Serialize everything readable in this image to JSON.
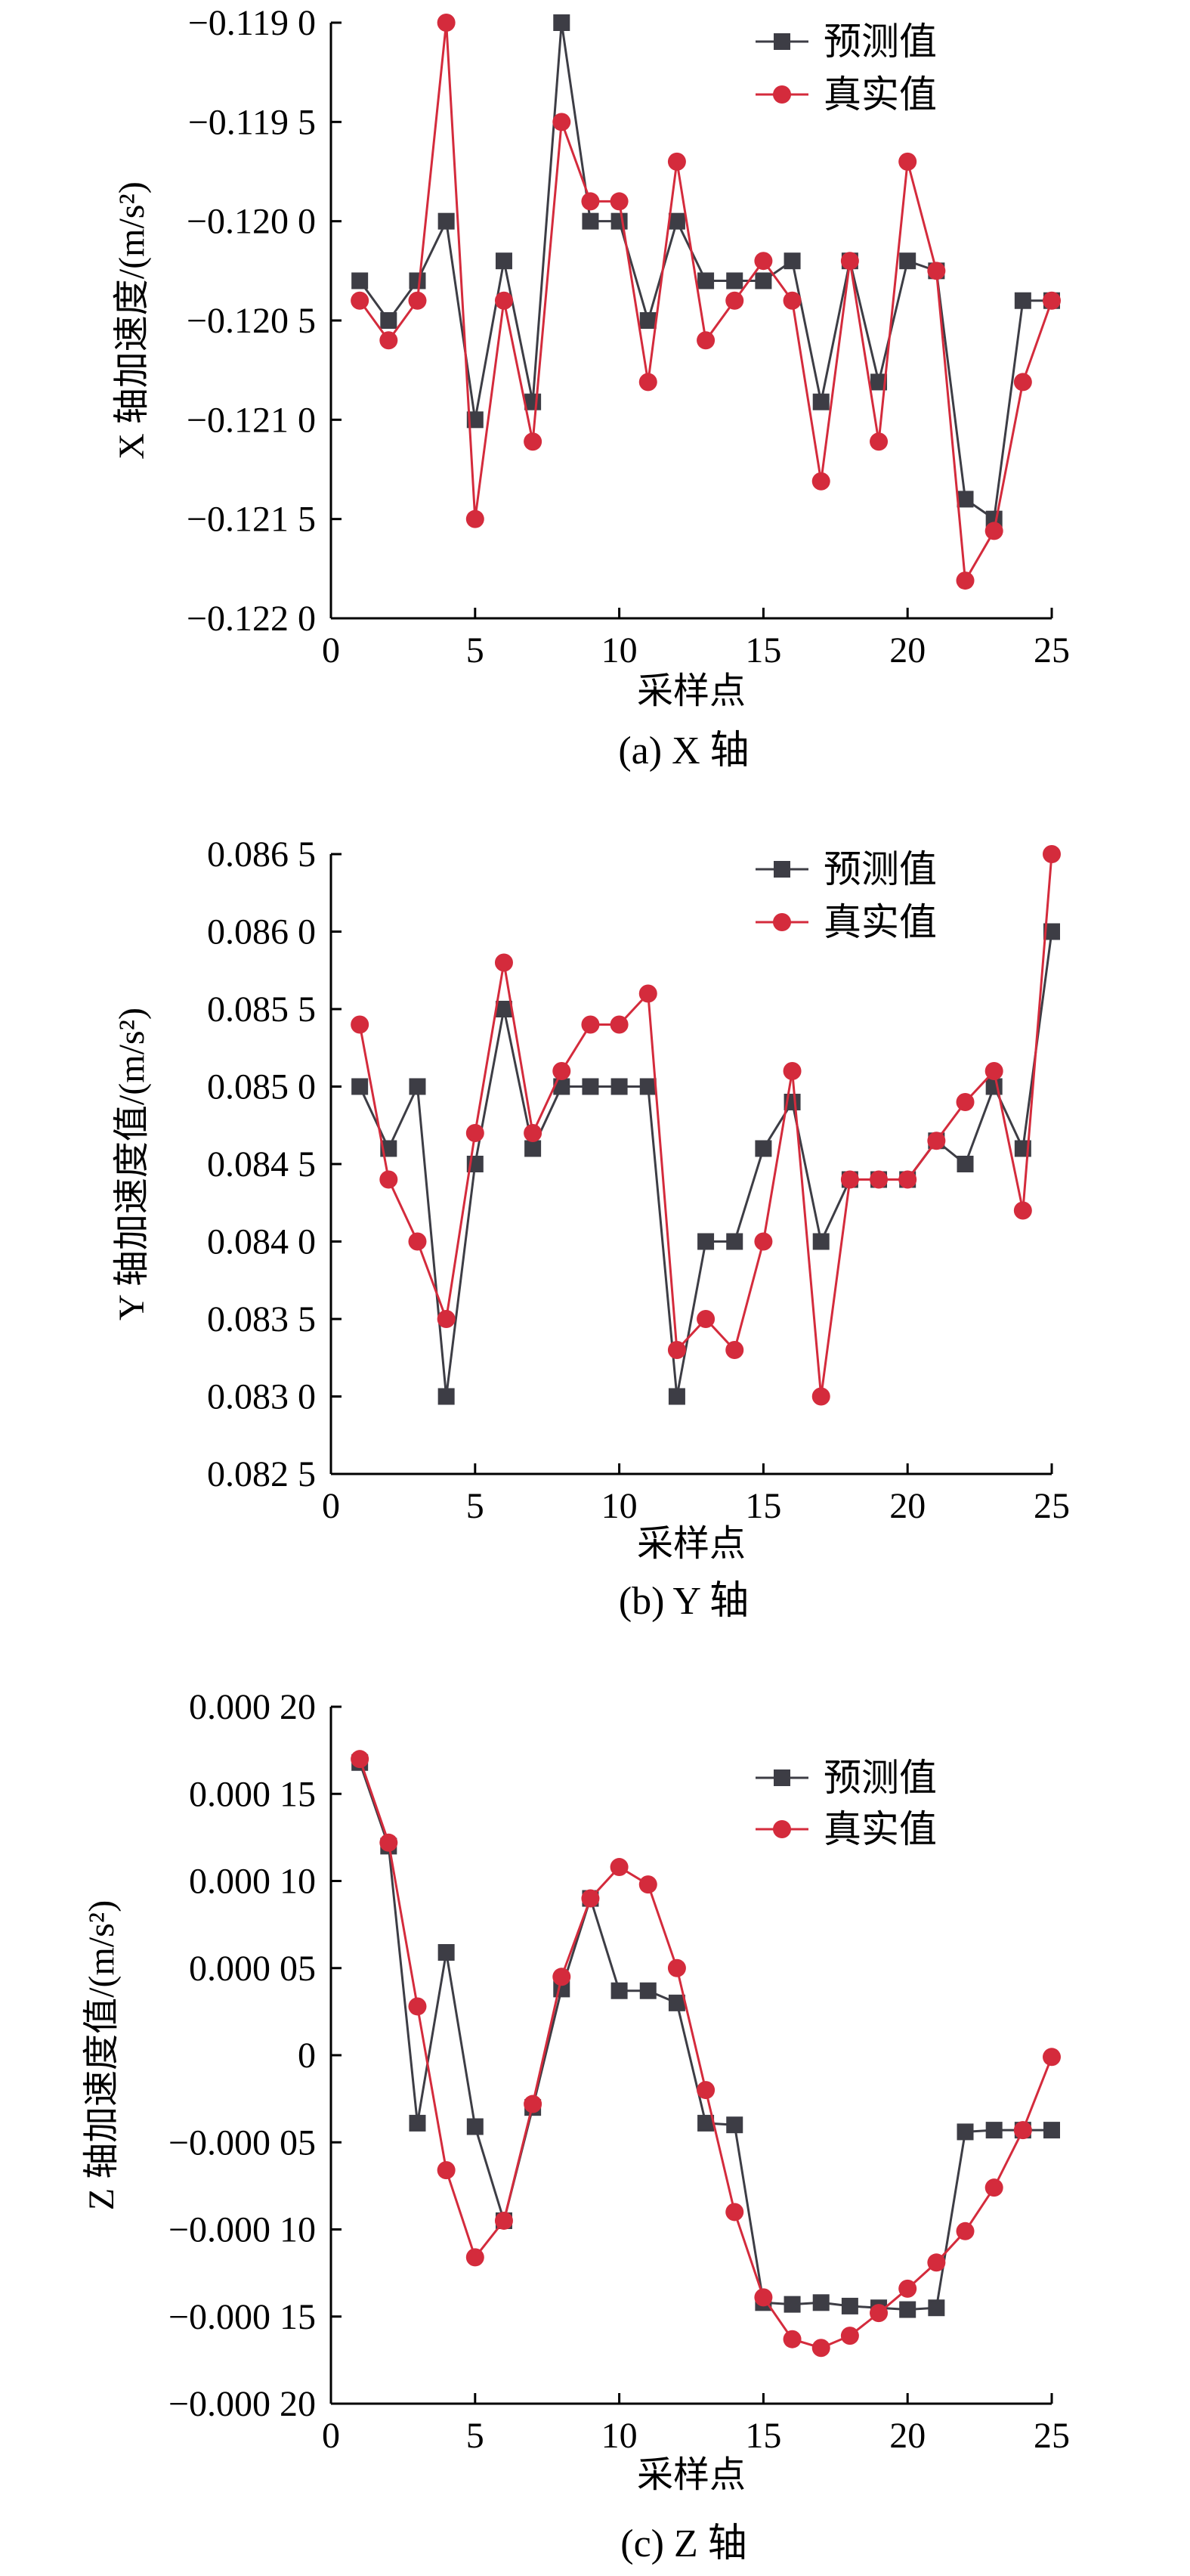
{
  "colors": {
    "predicted": "#3d3d45",
    "actual": "#d42b3c",
    "axis": "#000000"
  },
  "chart_data": [
    {
      "type": "line",
      "caption": "(a) X 轴",
      "xlabel": "采样点",
      "ylabel": "X 轴加速度/(m/s²)",
      "xlim": [
        0,
        25
      ],
      "ylim": [
        -0.122,
        -0.119
      ],
      "x_ticks": [
        0,
        5,
        10,
        15,
        20,
        25
      ],
      "x_tick_labels": [
        "0",
        "5",
        "10",
        "15",
        "20",
        "25"
      ],
      "y_ticks": [
        -0.122,
        -0.1215,
        -0.121,
        -0.1205,
        -0.12,
        -0.1195,
        -0.119
      ],
      "y_tick_labels": [
        "−0.122 0",
        "−0.121 5",
        "−0.121 0",
        "−0.120 5",
        "−0.120 0",
        "−0.119 5",
        "−0.119 0"
      ],
      "legend": [
        "预测值",
        "真实值"
      ],
      "legend_position": "top-right",
      "x": [
        1,
        2,
        3,
        4,
        5,
        6,
        7,
        8,
        9,
        10,
        11,
        12,
        13,
        14,
        15,
        16,
        17,
        18,
        19,
        20,
        21,
        22,
        23,
        24,
        25
      ],
      "series": [
        {
          "name": "预测值",
          "marker": "square",
          "values": [
            -0.1203,
            -0.1205,
            -0.1203,
            -0.12,
            -0.121,
            -0.1202,
            -0.12091,
            -0.119,
            -0.12,
            -0.12,
            -0.1205,
            -0.12,
            -0.1203,
            -0.1203,
            -0.1203,
            -0.1202,
            -0.12091,
            -0.1202,
            -0.12081,
            -0.1202,
            -0.12025,
            -0.1214,
            -0.1215,
            -0.1204,
            -0.1204
          ]
        },
        {
          "name": "真实值",
          "marker": "circle",
          "values": [
            -0.1204,
            -0.1206,
            -0.1204,
            -0.119,
            -0.1215,
            -0.1204,
            -0.12111,
            -0.1195,
            -0.1199,
            -0.1199,
            -0.12081,
            -0.1197,
            -0.1206,
            -0.1204,
            -0.1202,
            -0.1204,
            -0.12131,
            -0.1202,
            -0.12111,
            -0.1197,
            -0.12025,
            -0.12181,
            -0.12156,
            -0.12081,
            -0.1204
          ]
        }
      ]
    },
    {
      "type": "line",
      "caption": "(b) Y 轴",
      "xlabel": "采样点",
      "ylabel": "Y 轴加速度值/(m/s²)",
      "xlim": [
        0,
        25
      ],
      "ylim": [
        0.0825,
        0.0865
      ],
      "x_ticks": [
        0,
        5,
        10,
        15,
        20,
        25
      ],
      "x_tick_labels": [
        "0",
        "5",
        "10",
        "15",
        "20",
        "25"
      ],
      "y_ticks": [
        0.0825,
        0.083,
        0.0835,
        0.084,
        0.0845,
        0.085,
        0.0855,
        0.086,
        0.0865
      ],
      "y_tick_labels": [
        "0.082 5",
        "0.083 0",
        "0.083 5",
        "0.084 0",
        "0.084 5",
        "0.085 0",
        "0.085 5",
        "0.086 0",
        "0.086 5"
      ],
      "legend": [
        "预测值",
        "真实值"
      ],
      "legend_position": "top-right",
      "x": [
        1,
        2,
        3,
        4,
        5,
        6,
        7,
        8,
        9,
        10,
        11,
        12,
        13,
        14,
        15,
        16,
        17,
        18,
        19,
        20,
        21,
        22,
        23,
        24,
        25
      ],
      "series": [
        {
          "name": "预测值",
          "marker": "square",
          "values": [
            0.085,
            0.0846,
            0.085,
            0.083,
            0.0845,
            0.0855,
            0.0846,
            0.085,
            0.085,
            0.085,
            0.085,
            0.083,
            0.084,
            0.084,
            0.0846,
            0.0849,
            0.084,
            0.0844,
            0.0844,
            0.0844,
            0.08465,
            0.0845,
            0.085,
            0.0846,
            0.086
          ]
        },
        {
          "name": "真实值",
          "marker": "circle",
          "values": [
            0.0854,
            0.0844,
            0.084,
            0.0835,
            0.0847,
            0.0858,
            0.0847,
            0.0851,
            0.0854,
            0.0854,
            0.0856,
            0.0833,
            0.0835,
            0.0833,
            0.084,
            0.0851,
            0.083,
            0.0844,
            0.0844,
            0.0844,
            0.08465,
            0.0849,
            0.0851,
            0.0842,
            0.0865
          ]
        }
      ]
    },
    {
      "type": "line",
      "caption": "(c) Z 轴",
      "xlabel": "采样点",
      "ylabel": "Z 轴加速度值/(m/s²)",
      "xlim": [
        0,
        25
      ],
      "ylim": [
        -0.0002,
        0.0002
      ],
      "x_ticks": [
        0,
        5,
        10,
        15,
        20,
        25
      ],
      "x_tick_labels": [
        "0",
        "5",
        "10",
        "15",
        "20",
        "25"
      ],
      "y_ticks": [
        -0.0002,
        -0.00015,
        -0.0001,
        -5e-05,
        0,
        5e-05,
        0.0001,
        0.00015,
        0.0002
      ],
      "y_tick_labels": [
        "−0.000 20",
        "−0.000 15",
        "−0.000 10",
        "−0.000 05",
        "0",
        "0.000 05",
        "0.000 10",
        "0.000 15",
        "0.000 20"
      ],
      "legend": [
        "预测值",
        "真实值"
      ],
      "legend_position": "top-right",
      "x": [
        1,
        2,
        3,
        4,
        5,
        6,
        7,
        8,
        9,
        10,
        11,
        12,
        13,
        14,
        15,
        16,
        17,
        18,
        19,
        20,
        21,
        22,
        23,
        24,
        25
      ],
      "series": [
        {
          "name": "预测值",
          "marker": "square",
          "values": [
            0.000168,
            0.00012,
            -3.9e-05,
            5.9e-05,
            -4.1e-05,
            -9.5e-05,
            -3e-05,
            3.8e-05,
            9e-05,
            3.7e-05,
            3.7e-05,
            3e-05,
            -3.9e-05,
            -4e-05,
            -0.000142,
            -0.000143,
            -0.000142,
            -0.000144,
            -0.000145,
            -0.000146,
            -0.000145,
            -4.4e-05,
            -4.3e-05,
            -4.3e-05,
            -4.3e-05
          ]
        },
        {
          "name": "真实值",
          "marker": "circle",
          "values": [
            0.00017,
            0.000122,
            2.8e-05,
            -6.6e-05,
            -0.000116,
            -9.5e-05,
            -2.8e-05,
            4.5e-05,
            9e-05,
            0.000108,
            9.8e-05,
            5e-05,
            -2e-05,
            -9e-05,
            -0.000139,
            -0.000163,
            -0.000168,
            -0.000161,
            -0.000148,
            -0.000134,
            -0.000119,
            -0.000101,
            -7.6e-05,
            -4.3e-05,
            -1e-06
          ]
        }
      ]
    }
  ]
}
